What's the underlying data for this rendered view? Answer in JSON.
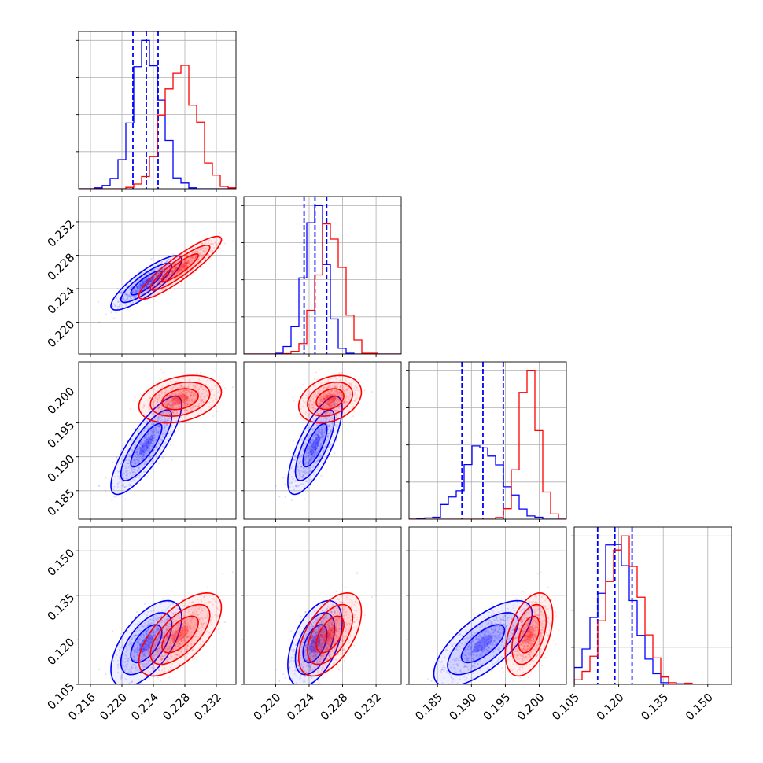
{
  "chart_data": {
    "type": "corner",
    "grid": true,
    "legend": "none",
    "series": [
      {
        "color": "#0000ff",
        "quantile_lines": "dashed",
        "mean": [
          0.2231,
          0.2247,
          0.1917,
          0.1187
        ],
        "std": [
          0.0018,
          0.0013,
          0.0029,
          0.0058
        ],
        "quantiles": [
          [
            0.2214,
            0.2231,
            0.2246
          ],
          [
            0.2234,
            0.2247,
            0.2261
          ],
          [
            0.1886,
            0.1917,
            0.1947
          ],
          [
            0.1129,
            0.1187,
            0.1245
          ]
        ]
      },
      {
        "color": "#ff0000",
        "mean": [
          0.2274,
          0.2265,
          0.1985,
          0.1218
        ],
        "std": [
          0.0021,
          0.0015,
          0.0014,
          0.0056
        ]
      }
    ],
    "panels": [
      {
        "id": "hist-1",
        "row": 0,
        "col": 0,
        "type": "histogram",
        "xlim": [
          0.2145,
          0.2345
        ],
        "ylim": [
          0,
          1.06
        ]
      },
      {
        "id": "scatter-2-1",
        "row": 1,
        "col": 0,
        "type": "contour",
        "xlim": [
          0.2145,
          0.2345
        ],
        "ylim": [
          0.2162,
          0.235
        ]
      },
      {
        "id": "hist-2",
        "row": 1,
        "col": 1,
        "type": "histogram",
        "xlim": [
          0.2162,
          0.235
        ],
        "ylim": [
          0,
          1.06
        ]
      },
      {
        "id": "scatter-3-1",
        "row": 2,
        "col": 0,
        "type": "contour",
        "xlim": [
          0.2145,
          0.2345
        ],
        "ylim": [
          0.1808,
          0.204
        ]
      },
      {
        "id": "scatter-3-2",
        "row": 2,
        "col": 1,
        "type": "contour",
        "xlim": [
          0.2162,
          0.235
        ],
        "ylim": [
          0.1808,
          0.204
        ]
      },
      {
        "id": "hist-3",
        "row": 2,
        "col": 2,
        "type": "histogram",
        "xlim": [
          0.1808,
          0.204
        ],
        "ylim": [
          0,
          1.06
        ]
      },
      {
        "id": "scatter-4-1",
        "row": 3,
        "col": 0,
        "type": "contour",
        "xlim": [
          0.2145,
          0.2345
        ],
        "ylim": [
          0.105,
          0.158
        ]
      },
      {
        "id": "scatter-4-2",
        "row": 3,
        "col": 1,
        "type": "contour",
        "xlim": [
          0.2162,
          0.235
        ],
        "ylim": [
          0.105,
          0.158
        ]
      },
      {
        "id": "scatter-4-3",
        "row": 3,
        "col": 2,
        "type": "contour",
        "xlim": [
          0.1808,
          0.204
        ],
        "ylim": [
          0.105,
          0.158
        ]
      },
      {
        "id": "hist-4",
        "row": 3,
        "col": 3,
        "type": "histogram",
        "xlim": [
          0.105,
          0.158
        ],
        "ylim": [
          0,
          1.06
        ]
      }
    ],
    "bottom_tick_labels": [
      [
        "0.216",
        "0.220",
        "0.224",
        "0.228",
        "0.232"
      ],
      [
        "0.220",
        "0.224",
        "0.228",
        "0.232"
      ],
      [
        "0.185",
        "0.190",
        "0.195",
        "0.200"
      ],
      [
        "0.105",
        "0.120",
        "0.135",
        "0.150"
      ]
    ],
    "left_tick_labels": [
      [],
      [
        "0.220",
        "0.224",
        "0.228",
        "0.232"
      ],
      [
        "0.185",
        "0.190",
        "0.195",
        "0.200"
      ],
      [
        "0.105",
        "0.120",
        "0.135",
        "0.150"
      ]
    ]
  }
}
